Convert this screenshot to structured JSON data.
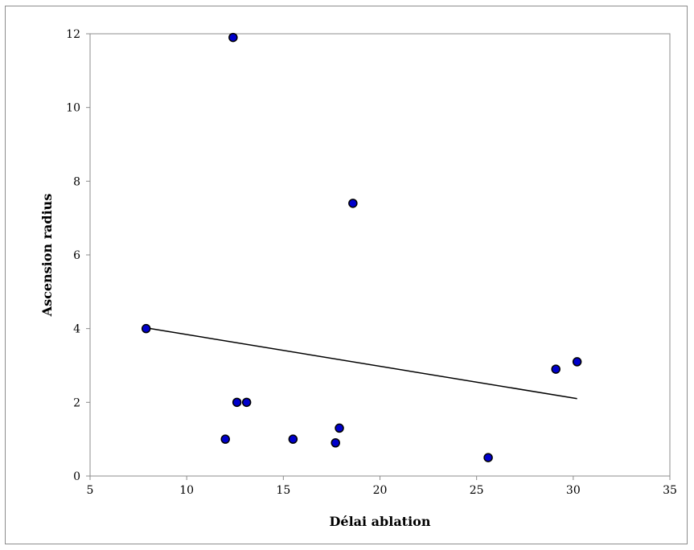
{
  "chart_data": {
    "type": "scatter",
    "title": "",
    "xlabel": "Délai ablation",
    "ylabel": "Ascension radius",
    "xlim": [
      5,
      35
    ],
    "ylim": [
      0,
      12
    ],
    "xticks": [
      5,
      10,
      15,
      20,
      25,
      30,
      35
    ],
    "yticks": [
      0,
      2,
      4,
      6,
      8,
      10,
      12
    ],
    "grid": false,
    "legend": "none",
    "marker_color": "#0000cc",
    "marker_edge_color": "#000000",
    "trendline_color": "#000000",
    "points": [
      {
        "x": 7.9,
        "y": 4.0
      },
      {
        "x": 12.0,
        "y": 1.0
      },
      {
        "x": 12.4,
        "y": 11.9
      },
      {
        "x": 12.6,
        "y": 2.0
      },
      {
        "x": 13.1,
        "y": 2.0
      },
      {
        "x": 15.5,
        "y": 1.0
      },
      {
        "x": 17.7,
        "y": 0.9
      },
      {
        "x": 17.9,
        "y": 1.3
      },
      {
        "x": 18.6,
        "y": 7.4
      },
      {
        "x": 25.6,
        "y": 0.5
      },
      {
        "x": 29.1,
        "y": 2.9
      },
      {
        "x": 30.2,
        "y": 3.1
      }
    ],
    "trendline": {
      "x": [
        7.9,
        30.2
      ],
      "y": [
        4.02,
        2.1
      ]
    }
  }
}
